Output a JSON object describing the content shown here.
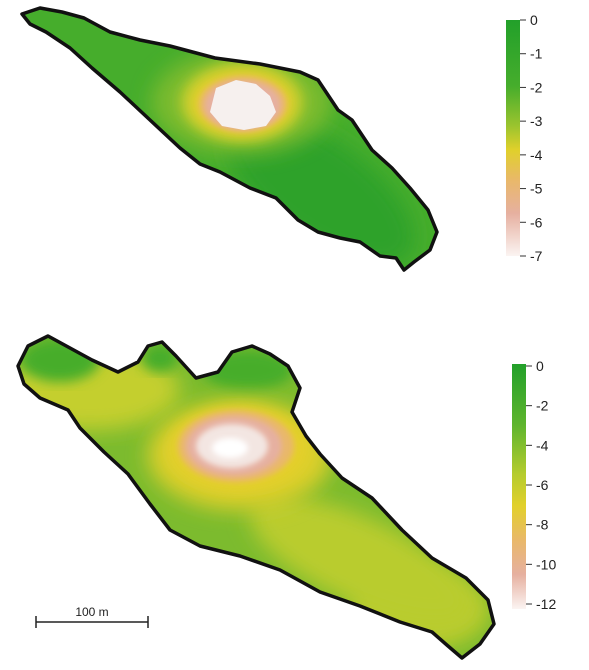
{
  "colors": {
    "ramp": [
      "#22a02a",
      "#46ad2c",
      "#7cbb2e",
      "#b9cc2d",
      "#e5cf2b",
      "#e9b86a",
      "#e6b0a0",
      "#f3e6e2",
      "#ffffff"
    ],
    "outline": "#111111",
    "background": "#ffffff"
  },
  "maps": [
    {
      "name": "upper-lake",
      "legend": {
        "ticks": [
          "0",
          "-1",
          "-2",
          "-3",
          "-4",
          "-5",
          "-6",
          "-7"
        ],
        "min": -7,
        "max": 0
      }
    },
    {
      "name": "lower-lake",
      "legend": {
        "ticks": [
          "0",
          "-2",
          "-4",
          "-6",
          "-8",
          "-10",
          "-12"
        ],
        "min": -12,
        "max": 0
      }
    }
  ],
  "scale_bar": {
    "label": "100 m"
  }
}
